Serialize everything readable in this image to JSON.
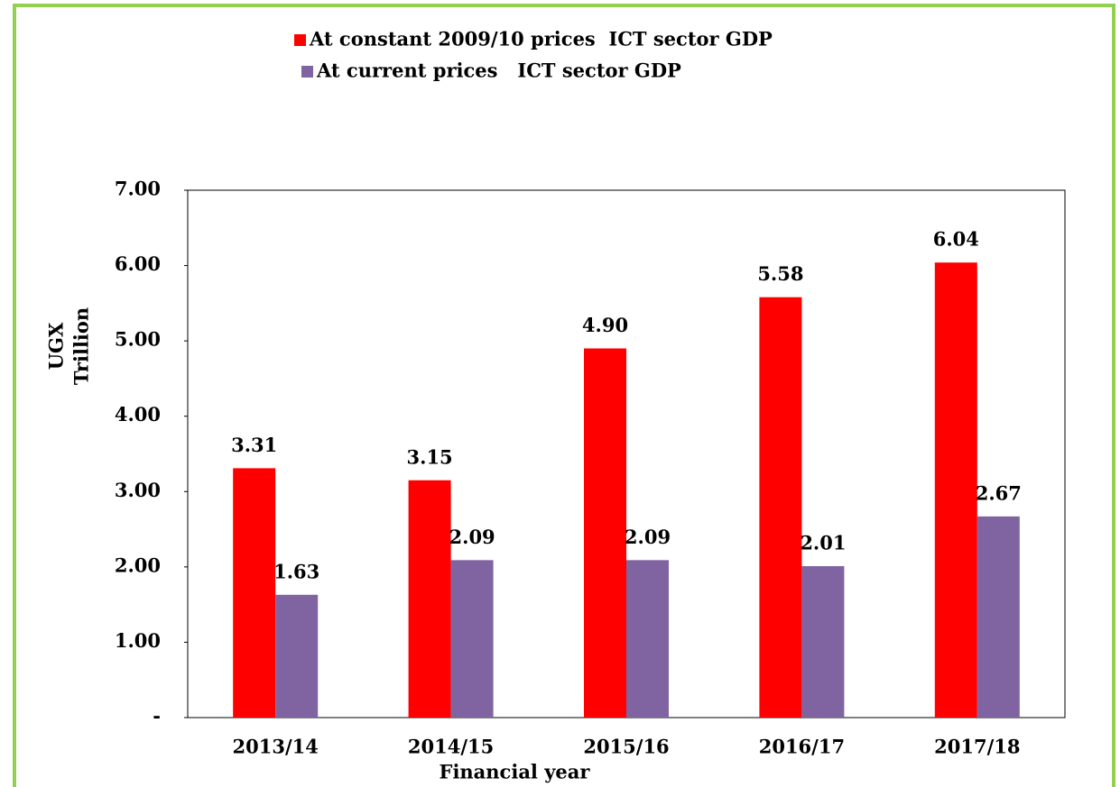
{
  "chart_data": {
    "type": "bar",
    "categories": [
      "2013/14",
      "2014/15",
      "2015/16",
      "2016/17",
      "2017/18"
    ],
    "series": [
      {
        "name": "At constant 2009/10 prices  ICT sector GDP",
        "color": "#ff0000",
        "values": [
          3.31,
          3.15,
          4.9,
          5.58,
          6.04
        ],
        "value_labels": [
          "3.31",
          "3.15",
          "4.90",
          "5.58",
          "6.04"
        ]
      },
      {
        "name": "At current prices   ICT sector GDP",
        "color": "#8064a2",
        "values": [
          1.63,
          2.09,
          2.09,
          2.01,
          2.67
        ],
        "value_labels": [
          "1.63",
          "2.09",
          "2.09",
          "2.01",
          "2.67"
        ]
      }
    ],
    "y_label": [
      "UGX",
      "Trillion"
    ],
    "x_label": "Financial year",
    "ylim": [
      0,
      7
    ],
    "yticks": [
      {
        "value": 0,
        "label": "-"
      },
      {
        "value": 1,
        "label": "1.00"
      },
      {
        "value": 2,
        "label": "2.00"
      },
      {
        "value": 3,
        "label": "3.00"
      },
      {
        "value": 4,
        "label": "4.00"
      },
      {
        "value": 5,
        "label": "5.00"
      },
      {
        "value": 6,
        "label": "6.00"
      },
      {
        "value": 7,
        "label": "7.00"
      }
    ],
    "legend": "top"
  }
}
